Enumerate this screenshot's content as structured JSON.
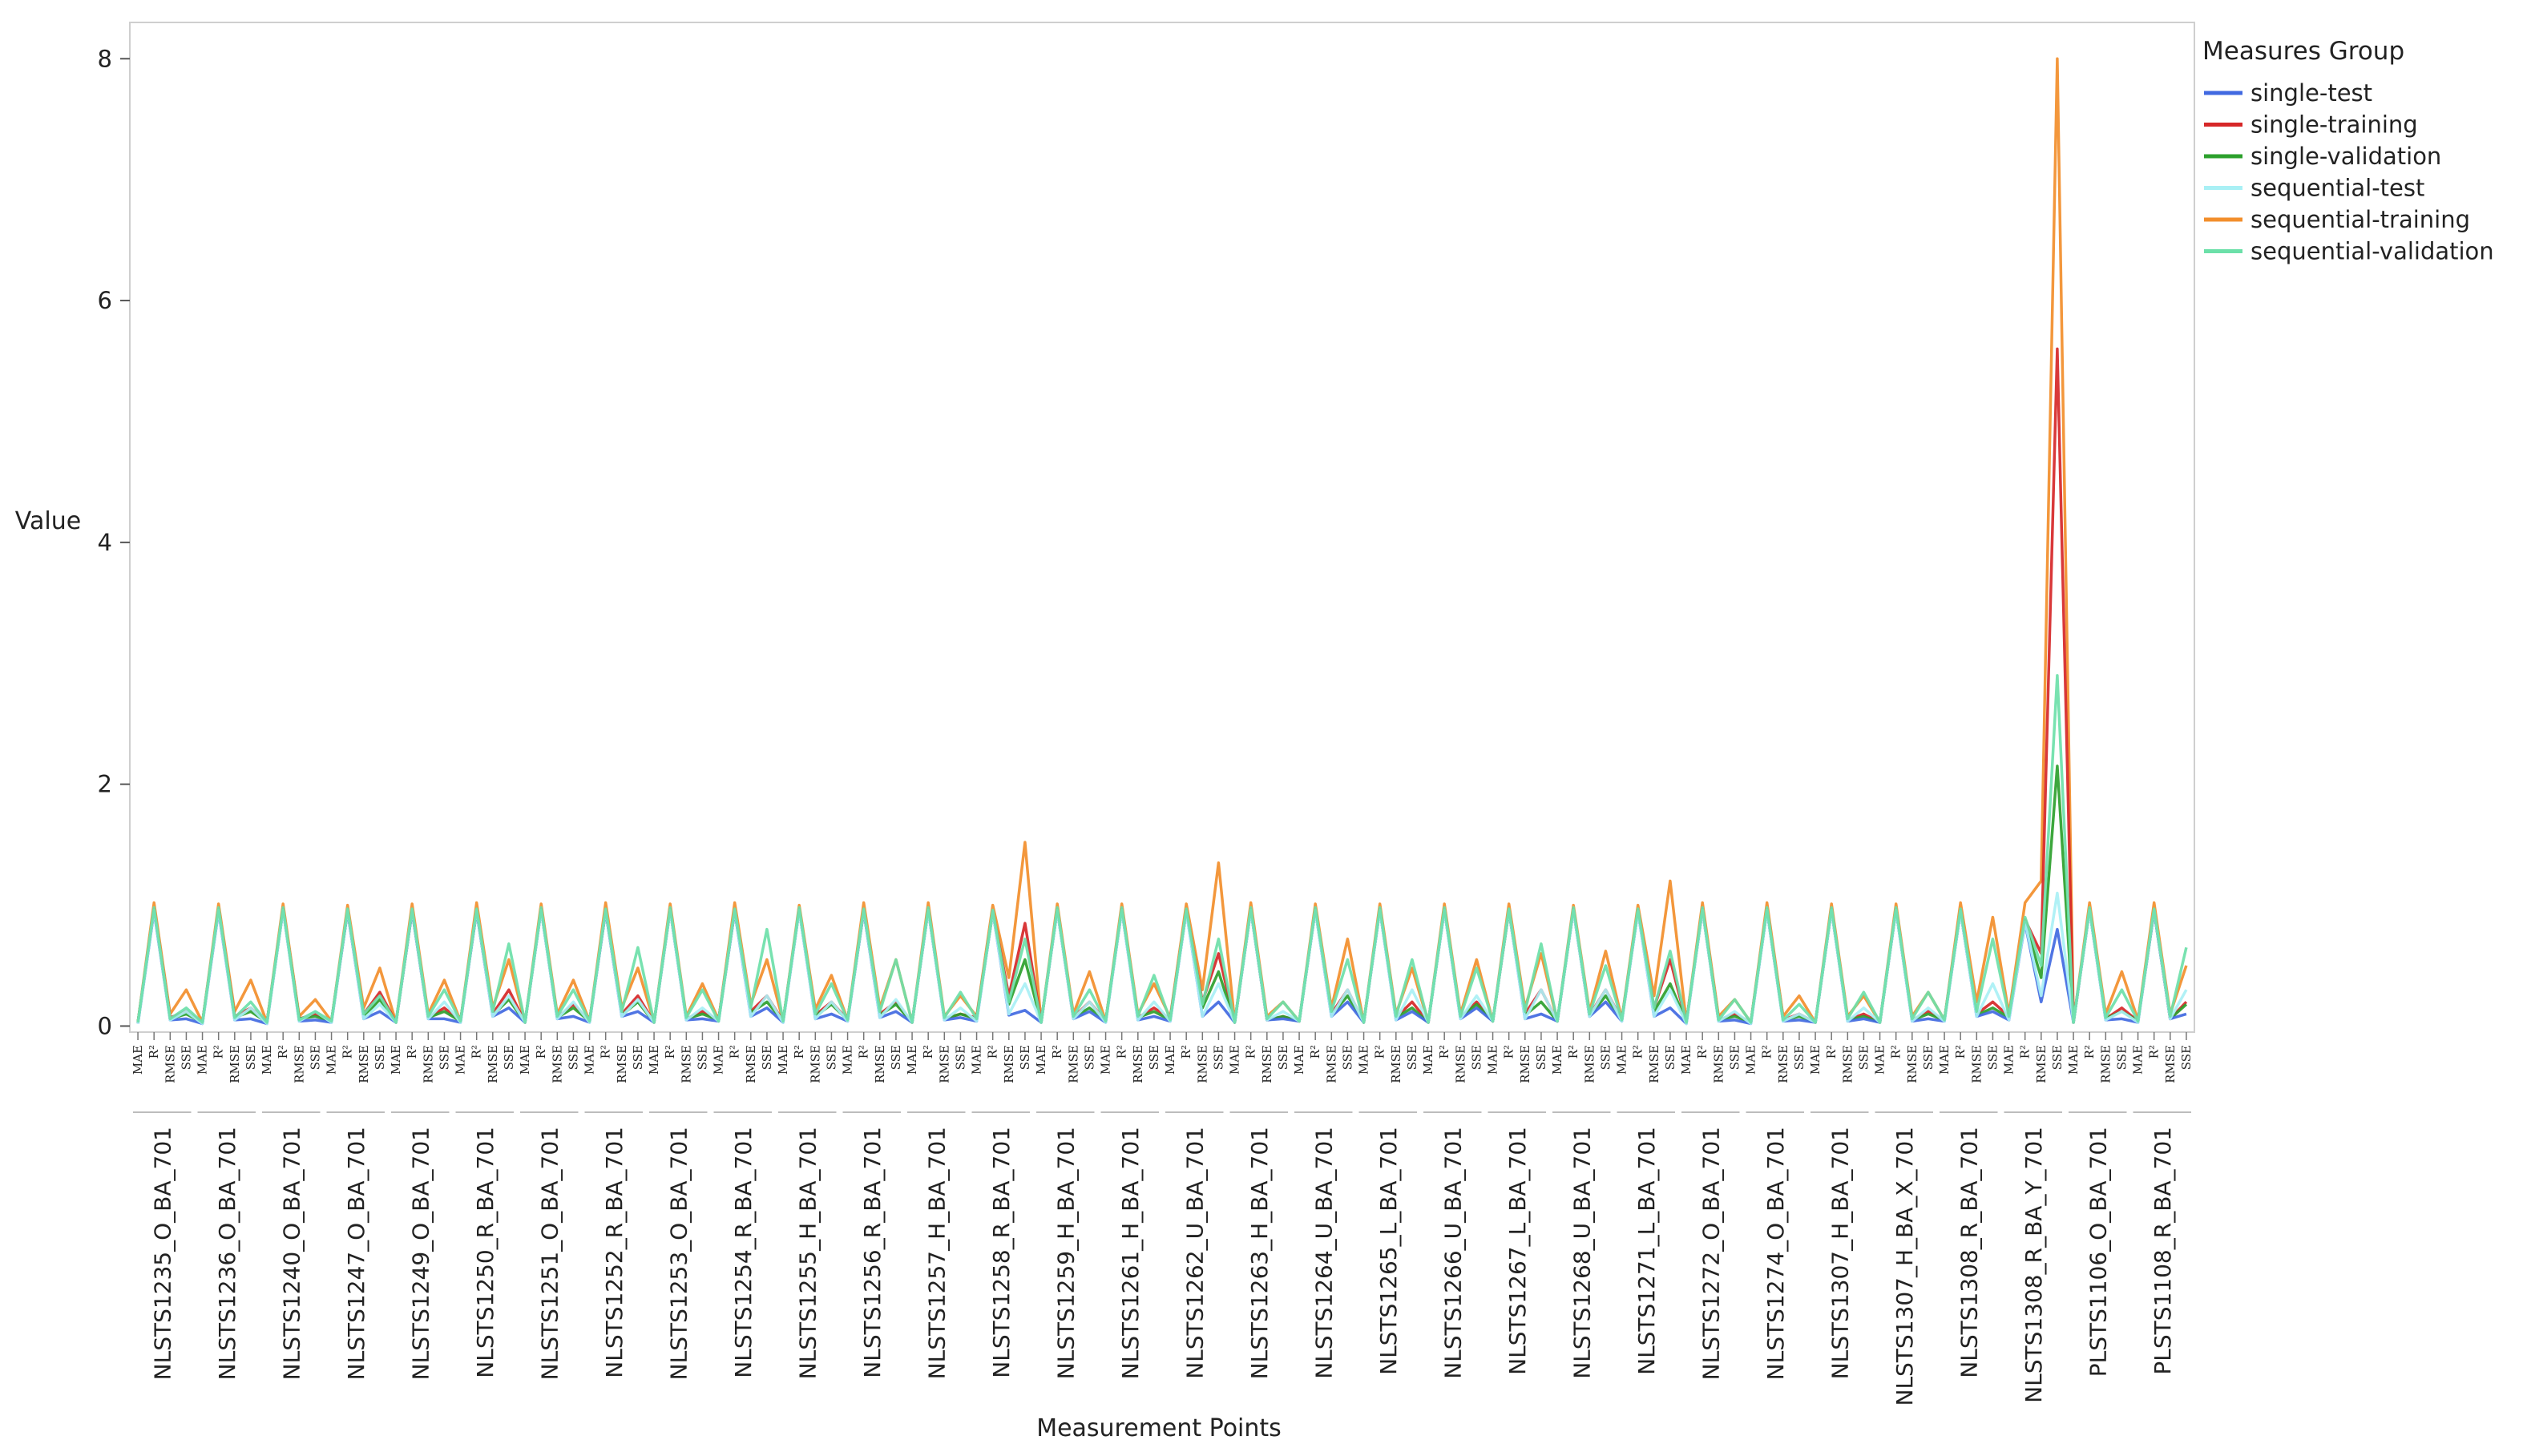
{
  "chart_data": {
    "type": "line",
    "title": "",
    "ylabel": "Value",
    "xlabel": "Measurement Points",
    "ylim": [
      -0.05,
      8.3
    ],
    "yticks": [
      0,
      2,
      4,
      6,
      8
    ],
    "legend_title": "Measures Group",
    "legend_position": "right",
    "grid": false,
    "metrics": [
      "MAE",
      "R²",
      "RMSE",
      "SSE"
    ],
    "groups": [
      "NLSTS1235_O_BA_701",
      "NLSTS1236_O_BA_701",
      "NLSTS1240_O_BA_701",
      "NLSTS1247_O_BA_701",
      "NLSTS1249_O_BA_701",
      "NLSTS1250_R_BA_701",
      "NLSTS1251_O_BA_701",
      "NLSTS1252_R_BA_701",
      "NLSTS1253_O_BA_701",
      "NLSTS1254_R_BA_701",
      "NLSTS1255_H_BA_701",
      "NLSTS1256_R_BA_701",
      "NLSTS1257_H_BA_701",
      "NLSTS1258_R_BA_701",
      "NLSTS1259_H_BA_701",
      "NLSTS1261_H_BA_701",
      "NLSTS1262_U_BA_701",
      "NLSTS1263_H_BA_701",
      "NLSTS1264_U_BA_701",
      "NLSTS1265_L_BA_701",
      "NLSTS1266_U_BA_701",
      "NLSTS1267_L_BA_701",
      "NLSTS1268_U_BA_701",
      "NLSTS1271_L_BA_701",
      "NLSTS1272_O_BA_701",
      "NLSTS1274_O_BA_701",
      "NLSTS1307_H_BA_701",
      "NLSTS1307_H_BA_X_701",
      "NLSTS1308_R_BA_701",
      "NLSTS1308_R_BA_Y_701",
      "PLSTS1106_O_BA_701",
      "PLSTS1108_R_BA_701"
    ],
    "series": [
      {
        "name": "single-test",
        "color": "#4169E1",
        "values": [
          0.02,
          0.95,
          0.05,
          0.06,
          0.02,
          0.95,
          0.05,
          0.06,
          0.02,
          0.96,
          0.04,
          0.05,
          0.03,
          0.95,
          0.06,
          0.12,
          0.03,
          0.95,
          0.06,
          0.06,
          0.03,
          0.95,
          0.08,
          0.15,
          0.03,
          0.96,
          0.06,
          0.08,
          0.03,
          0.95,
          0.08,
          0.12,
          0.03,
          0.96,
          0.05,
          0.06,
          0.04,
          0.95,
          0.08,
          0.15,
          0.03,
          0.96,
          0.06,
          0.1,
          0.04,
          0.95,
          0.07,
          0.12,
          0.03,
          0.96,
          0.05,
          0.07,
          0.04,
          0.95,
          0.09,
          0.13,
          0.03,
          0.96,
          0.06,
          0.12,
          0.03,
          0.96,
          0.05,
          0.08,
          0.04,
          0.95,
          0.08,
          0.2,
          0.03,
          0.96,
          0.05,
          0.06,
          0.04,
          0.96,
          0.08,
          0.2,
          0.03,
          0.96,
          0.05,
          0.12,
          0.03,
          0.96,
          0.06,
          0.15,
          0.04,
          0.96,
          0.06,
          0.1,
          0.04,
          0.96,
          0.08,
          0.2,
          0.04,
          0.95,
          0.08,
          0.15,
          0.02,
          0.96,
          0.04,
          0.05,
          0.02,
          0.96,
          0.04,
          0.05,
          0.03,
          0.96,
          0.04,
          0.06,
          0.03,
          0.96,
          0.04,
          0.06,
          0.04,
          0.95,
          0.08,
          0.12,
          0.05,
          0.85,
          0.2,
          0.8,
          0.03,
          0.96,
          0.05,
          0.06,
          0.03,
          0.95,
          0.06,
          0.1
        ]
      },
      {
        "name": "single-training",
        "color": "#D62728",
        "values": [
          0.03,
          0.97,
          0.07,
          0.12,
          0.03,
          0.97,
          0.08,
          0.15,
          0.03,
          0.97,
          0.06,
          0.1,
          0.04,
          0.96,
          0.1,
          0.28,
          0.03,
          0.96,
          0.07,
          0.15,
          0.04,
          0.96,
          0.1,
          0.3,
          0.03,
          0.97,
          0.07,
          0.18,
          0.04,
          0.96,
          0.1,
          0.25,
          0.03,
          0.97,
          0.06,
          0.12,
          0.05,
          0.96,
          0.12,
          0.25,
          0.04,
          0.97,
          0.09,
          0.2,
          0.05,
          0.96,
          0.1,
          0.2,
          0.03,
          0.97,
          0.06,
          0.1,
          0.07,
          0.95,
          0.25,
          0.85,
          0.03,
          0.97,
          0.07,
          0.2,
          0.04,
          0.97,
          0.07,
          0.15,
          0.06,
          0.96,
          0.2,
          0.6,
          0.03,
          0.97,
          0.05,
          0.08,
          0.04,
          0.97,
          0.1,
          0.3,
          0.03,
          0.97,
          0.07,
          0.2,
          0.03,
          0.97,
          0.07,
          0.2,
          0.04,
          0.96,
          0.1,
          0.3,
          0.04,
          0.97,
          0.09,
          0.3,
          0.05,
          0.96,
          0.15,
          0.55,
          0.03,
          0.97,
          0.05,
          0.1,
          0.03,
          0.97,
          0.05,
          0.1,
          0.03,
          0.97,
          0.05,
          0.1,
          0.03,
          0.97,
          0.05,
          0.12,
          0.05,
          0.96,
          0.1,
          0.2,
          0.08,
          0.88,
          0.6,
          5.6,
          0.03,
          0.97,
          0.06,
          0.15,
          0.04,
          0.96,
          0.06,
          0.2
        ]
      },
      {
        "name": "single-validation",
        "color": "#2CA02C",
        "values": [
          0.03,
          0.96,
          0.06,
          0.1,
          0.03,
          0.96,
          0.07,
          0.12,
          0.03,
          0.96,
          0.06,
          0.08,
          0.04,
          0.95,
          0.08,
          0.22,
          0.03,
          0.95,
          0.07,
          0.12,
          0.04,
          0.95,
          0.09,
          0.22,
          0.03,
          0.96,
          0.07,
          0.15,
          0.04,
          0.95,
          0.09,
          0.2,
          0.03,
          0.96,
          0.06,
          0.1,
          0.05,
          0.95,
          0.11,
          0.2,
          0.04,
          0.96,
          0.08,
          0.18,
          0.05,
          0.95,
          0.09,
          0.18,
          0.03,
          0.96,
          0.06,
          0.1,
          0.06,
          0.94,
          0.18,
          0.55,
          0.03,
          0.96,
          0.07,
          0.15,
          0.04,
          0.96,
          0.07,
          0.12,
          0.05,
          0.95,
          0.15,
          0.45,
          0.03,
          0.96,
          0.05,
          0.08,
          0.04,
          0.96,
          0.09,
          0.25,
          0.03,
          0.96,
          0.07,
          0.15,
          0.03,
          0.96,
          0.07,
          0.18,
          0.04,
          0.95,
          0.09,
          0.2,
          0.04,
          0.96,
          0.08,
          0.25,
          0.05,
          0.95,
          0.12,
          0.35,
          0.03,
          0.96,
          0.05,
          0.08,
          0.03,
          0.96,
          0.05,
          0.08,
          0.03,
          0.96,
          0.05,
          0.08,
          0.03,
          0.96,
          0.05,
          0.1,
          0.05,
          0.95,
          0.09,
          0.15,
          0.07,
          0.86,
          0.4,
          2.15,
          0.03,
          0.96,
          0.06,
          0.12,
          0.04,
          0.95,
          0.06,
          0.18
        ]
      },
      {
        "name": "sequential-test",
        "color": "#A9F0F5",
        "values": [
          0.02,
          0.96,
          0.05,
          0.12,
          0.02,
          0.96,
          0.05,
          0.15,
          0.02,
          0.96,
          0.04,
          0.12,
          0.03,
          0.96,
          0.06,
          0.18,
          0.03,
          0.96,
          0.06,
          0.2,
          0.03,
          0.96,
          0.08,
          0.25,
          0.03,
          0.96,
          0.06,
          0.2,
          0.03,
          0.96,
          0.08,
          0.22,
          0.03,
          0.96,
          0.05,
          0.15,
          0.04,
          0.96,
          0.08,
          0.25,
          0.03,
          0.96,
          0.06,
          0.2,
          0.04,
          0.96,
          0.07,
          0.22,
          0.03,
          0.96,
          0.05,
          0.15,
          0.04,
          0.95,
          0.1,
          0.35,
          0.03,
          0.96,
          0.06,
          0.2,
          0.03,
          0.96,
          0.05,
          0.2,
          0.04,
          0.95,
          0.08,
          0.35,
          0.03,
          0.96,
          0.05,
          0.12,
          0.04,
          0.96,
          0.08,
          0.3,
          0.03,
          0.96,
          0.05,
          0.3,
          0.03,
          0.96,
          0.06,
          0.25,
          0.04,
          0.96,
          0.06,
          0.3,
          0.04,
          0.96,
          0.08,
          0.3,
          0.04,
          0.95,
          0.08,
          0.3,
          0.02,
          0.96,
          0.04,
          0.12,
          0.02,
          0.96,
          0.04,
          0.1,
          0.03,
          0.96,
          0.04,
          0.15,
          0.03,
          0.96,
          0.04,
          0.15,
          0.04,
          0.95,
          0.08,
          0.35,
          0.05,
          0.86,
          0.25,
          1.1,
          0.03,
          0.96,
          0.05,
          0.12,
          0.03,
          0.96,
          0.06,
          0.3
        ]
      },
      {
        "name": "sequential-training",
        "color": "#F28E2B",
        "values": [
          0.03,
          1.02,
          0.1,
          0.3,
          0.03,
          1.01,
          0.12,
          0.38,
          0.03,
          1.01,
          0.08,
          0.22,
          0.04,
          1.0,
          0.15,
          0.48,
          0.03,
          1.01,
          0.1,
          0.38,
          0.04,
          1.02,
          0.15,
          0.55,
          0.03,
          1.01,
          0.1,
          0.38,
          0.04,
          1.02,
          0.15,
          0.48,
          0.03,
          1.01,
          0.08,
          0.35,
          0.05,
          1.02,
          0.18,
          0.55,
          0.04,
          1.0,
          0.14,
          0.42,
          0.05,
          1.02,
          0.15,
          0.55,
          0.03,
          1.02,
          0.08,
          0.25,
          0.08,
          1.0,
          0.4,
          1.52,
          0.03,
          1.01,
          0.1,
          0.45,
          0.04,
          1.01,
          0.1,
          0.35,
          0.07,
          1.01,
          0.3,
          1.35,
          0.03,
          1.02,
          0.08,
          0.2,
          0.04,
          1.01,
          0.15,
          0.72,
          0.03,
          1.01,
          0.1,
          0.48,
          0.03,
          1.01,
          0.1,
          0.55,
          0.04,
          1.01,
          0.15,
          0.6,
          0.04,
          1.0,
          0.12,
          0.62,
          0.06,
          1.0,
          0.25,
          1.2,
          0.03,
          1.02,
          0.08,
          0.22,
          0.03,
          1.02,
          0.08,
          0.25,
          0.03,
          1.01,
          0.08,
          0.25,
          0.03,
          1.01,
          0.08,
          0.28,
          0.05,
          1.02,
          0.2,
          0.9,
          0.1,
          1.02,
          1.2,
          8.0,
          0.03,
          1.02,
          0.1,
          0.45,
          0.05,
          1.02,
          0.1,
          0.5
        ]
      },
      {
        "name": "sequential-validation",
        "color": "#6CE0A9",
        "values": [
          0.03,
          0.98,
          0.06,
          0.15,
          0.03,
          0.98,
          0.07,
          0.2,
          0.03,
          0.98,
          0.05,
          0.12,
          0.04,
          0.97,
          0.1,
          0.25,
          0.03,
          0.97,
          0.08,
          0.3,
          0.04,
          0.97,
          0.12,
          0.68,
          0.03,
          0.98,
          0.08,
          0.3,
          0.04,
          0.97,
          0.12,
          0.65,
          0.03,
          0.98,
          0.07,
          0.3,
          0.04,
          0.97,
          0.15,
          0.8,
          0.04,
          0.98,
          0.1,
          0.35,
          0.05,
          0.97,
          0.12,
          0.55,
          0.03,
          0.98,
          0.07,
          0.28,
          0.06,
          0.96,
          0.2,
          0.72,
          0.03,
          0.98,
          0.08,
          0.3,
          0.04,
          0.98,
          0.08,
          0.42,
          0.05,
          0.97,
          0.18,
          0.72,
          0.03,
          0.98,
          0.06,
          0.2,
          0.04,
          0.98,
          0.12,
          0.55,
          0.03,
          0.98,
          0.08,
          0.55,
          0.03,
          0.98,
          0.08,
          0.48,
          0.04,
          0.97,
          0.12,
          0.68,
          0.04,
          0.98,
          0.1,
          0.5,
          0.05,
          0.97,
          0.15,
          0.62,
          0.03,
          0.98,
          0.05,
          0.22,
          0.03,
          0.98,
          0.05,
          0.18,
          0.03,
          0.98,
          0.06,
          0.28,
          0.03,
          0.98,
          0.06,
          0.28,
          0.05,
          0.97,
          0.12,
          0.72,
          0.08,
          0.9,
          0.5,
          2.9,
          0.03,
          0.98,
          0.07,
          0.3,
          0.04,
          0.97,
          0.08,
          0.65
        ]
      }
    ]
  }
}
